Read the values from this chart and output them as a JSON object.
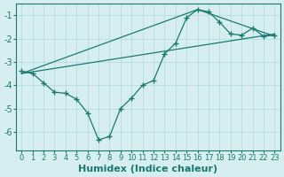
{
  "bg_color": "#d6eef0",
  "line_color": "#1a7a6e",
  "grid_color": "#b0d8dc",
  "xlabel": "Humidex (Indice chaleur)",
  "xlabel_fontsize": 8,
  "tick_fontsize": 7,
  "ylim": [
    -6.8,
    -0.5
  ],
  "xlim": [
    -0.5,
    23.5
  ],
  "yticks": [
    -6,
    -5,
    -4,
    -3,
    -2,
    -1
  ],
  "xticks": [
    0,
    1,
    2,
    3,
    4,
    5,
    6,
    7,
    8,
    9,
    10,
    11,
    12,
    13,
    14,
    15,
    16,
    17,
    18,
    19,
    20,
    21,
    22,
    23
  ],
  "series1_x": [
    0,
    1,
    2,
    3,
    4,
    5,
    6,
    7,
    8,
    9,
    10,
    11,
    12,
    13,
    14,
    15,
    16,
    17,
    18,
    19,
    20,
    21,
    22,
    23
  ],
  "series1_y": [
    -3.4,
    -3.5,
    -3.9,
    -4.3,
    -4.35,
    -4.6,
    -5.2,
    -6.35,
    -6.2,
    -5.0,
    -4.55,
    -4.0,
    -3.8,
    -2.65,
    -2.2,
    -1.1,
    -0.75,
    -0.85,
    -1.3,
    -1.8,
    -1.85,
    -1.55,
    -1.9,
    -1.85
  ],
  "series2_x": [
    0,
    23
  ],
  "series2_y": [
    -3.5,
    -1.8
  ],
  "series3_x": [
    0,
    16,
    23
  ],
  "series3_y": [
    -3.5,
    -0.75,
    -1.9
  ]
}
